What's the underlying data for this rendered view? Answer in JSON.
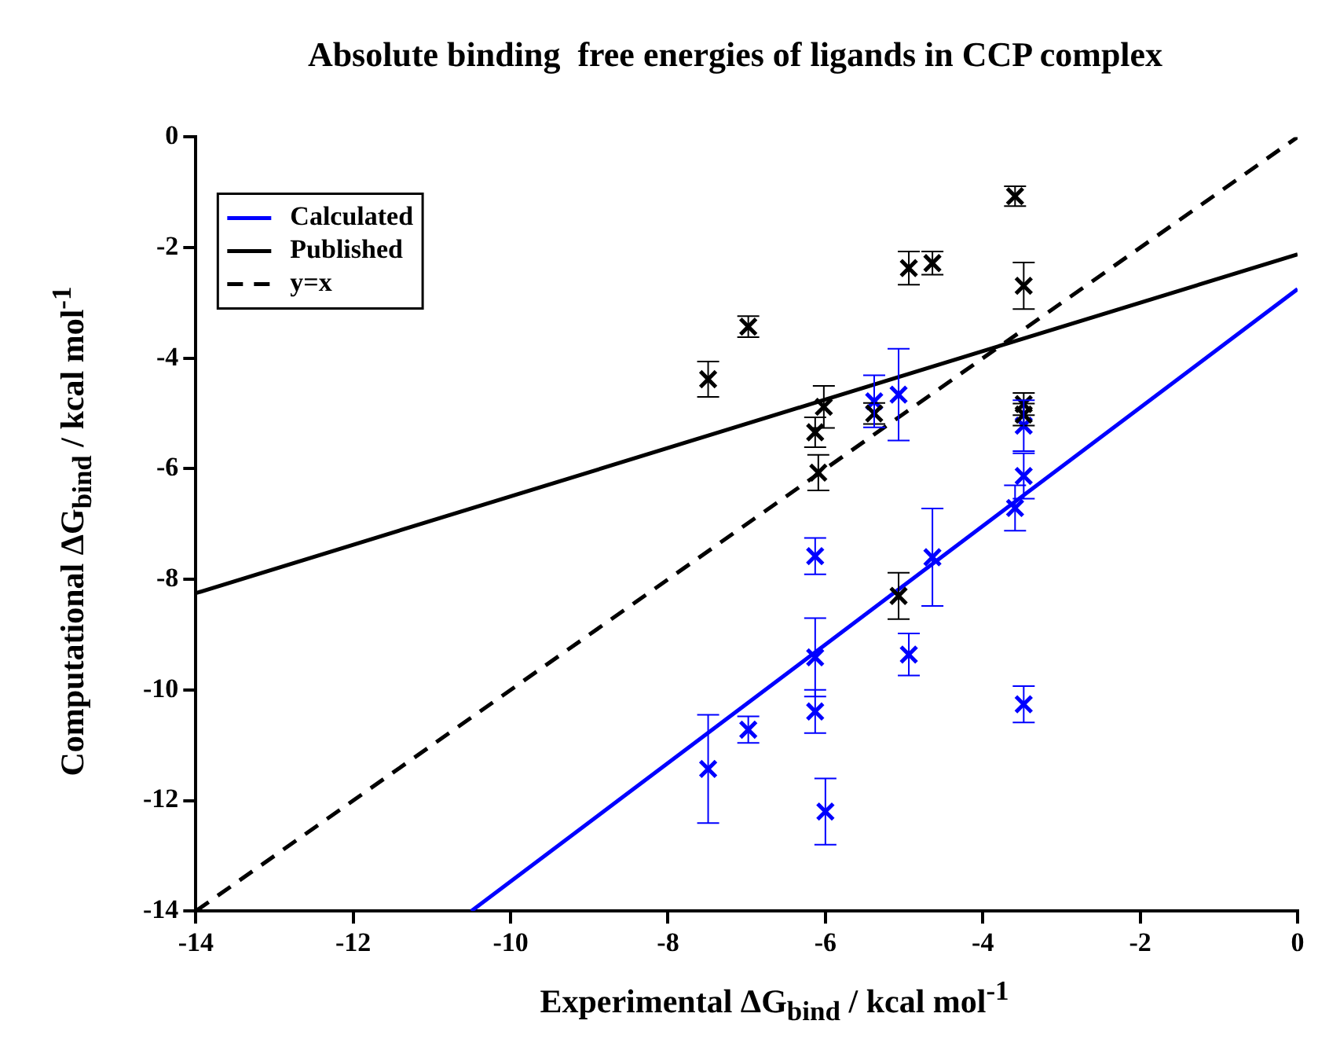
{
  "chart_data": {
    "type": "scatter",
    "title": "Absolute binding  free energies of ligands in CCP complex",
    "xlabel": "Experimental ΔG$_{bind}$ / kcal mol$^{-1}$",
    "ylabel": "Computational ΔG$_{bind}$ / kcal mol$^{-1}$",
    "xlim": [
      -14,
      0
    ],
    "xticks": [
      -14,
      -12,
      -10,
      -8,
      -6,
      -4,
      -2,
      0
    ],
    "ylim": [
      -14,
      0
    ],
    "yticks": [
      -14,
      -12,
      -10,
      -8,
      -6,
      -4,
      -2,
      0
    ],
    "grid": false,
    "legend": "top left",
    "series": [
      {
        "marker": "cross",
        "color": "#000000",
        "x": [
          -3.59,
          -4.94,
          -4.64,
          -3.48,
          -6.98,
          -7.49,
          -6.02,
          -6.13,
          -6.09,
          -5.38,
          -3.48,
          -3.48,
          -5.07
        ],
        "values": [
          -1.07,
          -2.37,
          -2.28,
          -2.69,
          -3.43,
          -4.38,
          -4.88,
          -5.34,
          -6.07,
          -5.0,
          -4.83,
          -5.02,
          -8.3
        ],
        "errors": [
          0.18,
          0.3,
          0.21,
          0.42,
          0.19,
          0.32,
          0.38,
          0.27,
          0.32,
          0.19,
          0.2,
          0.2,
          0.42
        ]
      },
      {
        "marker": "cross",
        "color": "#0000ff",
        "x": [
          -5.38,
          -5.07,
          -3.48,
          -3.48,
          -3.59,
          -6.13,
          -4.64,
          -4.94,
          -6.13,
          -3.48,
          -6.13,
          -6.98,
          -7.49,
          -6.0
        ],
        "values": [
          -4.78,
          -4.66,
          -5.22,
          -6.13,
          -6.71,
          -7.58,
          -7.6,
          -9.36,
          -9.41,
          -10.26,
          -10.39,
          -10.72,
          -11.43,
          -12.2
        ],
        "errors": [
          0.47,
          0.83,
          0.46,
          0.41,
          0.41,
          0.33,
          0.88,
          0.38,
          0.71,
          0.33,
          0.39,
          0.24,
          0.98,
          0.6
        ]
      },
      {
        "type": "line",
        "name": "Calculated",
        "color": "#0000ff",
        "line_style": "solid",
        "x": [
          -10.5,
          0
        ],
        "values": [
          -14,
          -2.75
        ]
      },
      {
        "type": "line",
        "name": "Published",
        "color": "#000000",
        "line_style": "solid",
        "x": [
          -14,
          0
        ],
        "values": [
          -8.25,
          -2.12
        ]
      },
      {
        "type": "line",
        "name": "y=x",
        "color": "#000000",
        "line_style": "dashed",
        "x": [
          -14,
          0
        ],
        "values": [
          -14,
          0
        ]
      }
    ]
  }
}
